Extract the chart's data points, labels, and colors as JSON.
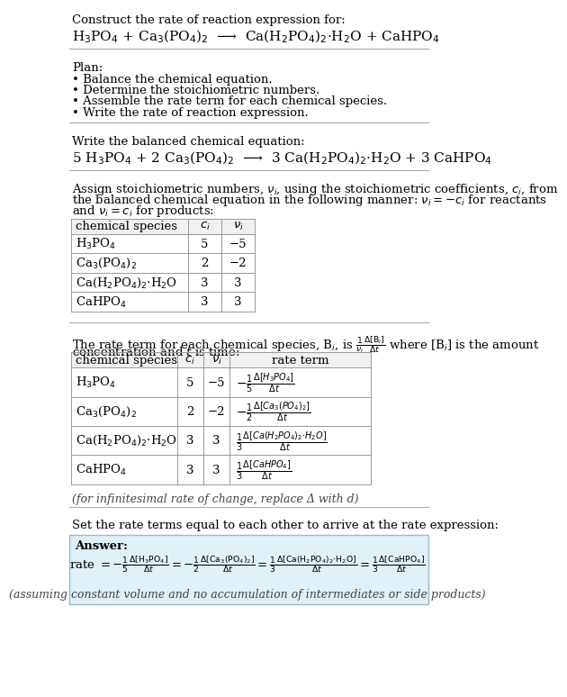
{
  "bg_color": "#ffffff",
  "title_text": "Construct the rate of reaction expression for:",
  "reaction_unbalanced": "H$_3$PO$_4$ + Ca$_3$(PO$_4$)$_2$  ⟶  Ca(H$_2$PO$_4$)$_2$·H$_2$O + CaHPO$_4$",
  "plan_header": "Plan:",
  "plan_items": [
    "• Balance the chemical equation.",
    "• Determine the stoichiometric numbers.",
    "• Assemble the rate term for each chemical species.",
    "• Write the rate of reaction expression."
  ],
  "balanced_header": "Write the balanced chemical equation:",
  "reaction_balanced": "5 H$_3$PO$_4$ + 2 Ca$_3$(PO$_4$)$_2$  ⟶  3 Ca(H$_2$PO$_4$)$_2$·H$_2$O + 3 CaHPO$_4$",
  "stoich_intro_lines": [
    "Assign stoichiometric numbers, $\\nu_i$, using the stoichiometric coefficients, $c_i$, from",
    "the balanced chemical equation in the following manner: $\\nu_i = -c_i$ for reactants",
    "and $\\nu_i = c_i$ for products:"
  ],
  "table1_headers": [
    "chemical species",
    "$c_i$",
    "$\\nu_i$"
  ],
  "table1_rows": [
    [
      "H$_3$PO$_4$",
      "5",
      "−5"
    ],
    [
      "Ca$_3$(PO$_4$)$_2$",
      "2",
      "−2"
    ],
    [
      "Ca(H$_2$PO$_4$)$_2$·H$_2$O",
      "3",
      "3"
    ],
    [
      "CaHPO$_4$",
      "3",
      "3"
    ]
  ],
  "rate_intro_line1": "The rate term for each chemical species, B$_i$, is $\\frac{1}{\\nu_i}\\frac{\\Delta[\\mathrm{B}_i]}{\\Delta t}$ where [B$_i$] is the amount",
  "rate_intro_line2": "concentration and $t$ is time:",
  "table2_headers": [
    "chemical species",
    "$c_i$",
    "$\\nu_i$",
    "rate term"
  ],
  "table2_rows": [
    [
      "H$_3$PO$_4$",
      "5",
      "−5",
      "$-\\frac{1}{5}\\frac{\\Delta[H_3PO_4]}{\\Delta t}$"
    ],
    [
      "Ca$_3$(PO$_4$)$_2$",
      "2",
      "−2",
      "$-\\frac{1}{2}\\frac{\\Delta[Ca_3(PO_4)_2]}{\\Delta t}$"
    ],
    [
      "Ca(H$_2$PO$_4$)$_2$·H$_2$O",
      "3",
      "3",
      "$\\frac{1}{3}\\frac{\\Delta[Ca(H_2PO_4)_2{\\cdot}H_2O]}{\\Delta t}$"
    ],
    [
      "CaHPO$_4$",
      "3",
      "3",
      "$\\frac{1}{3}\\frac{\\Delta[CaHPO_4]}{\\Delta t}$"
    ]
  ],
  "infinitesimal_note": "(for infinitesimal rate of change, replace Δ with d)",
  "set_equal_text": "Set the rate terms equal to each other to arrive at the rate expression:",
  "answer_box_color": "#dff0f7",
  "answer_box_border": "#99bbcc",
  "answer_label": "Answer:",
  "assume_note": "(assuming constant volume and no accumulation of intermediates or side products)",
  "font_size": 9.5,
  "table_header_color": "#f0f0f0",
  "text_color": "#000000",
  "line_color": "#aaaaaa",
  "table_line_color": "#999999"
}
